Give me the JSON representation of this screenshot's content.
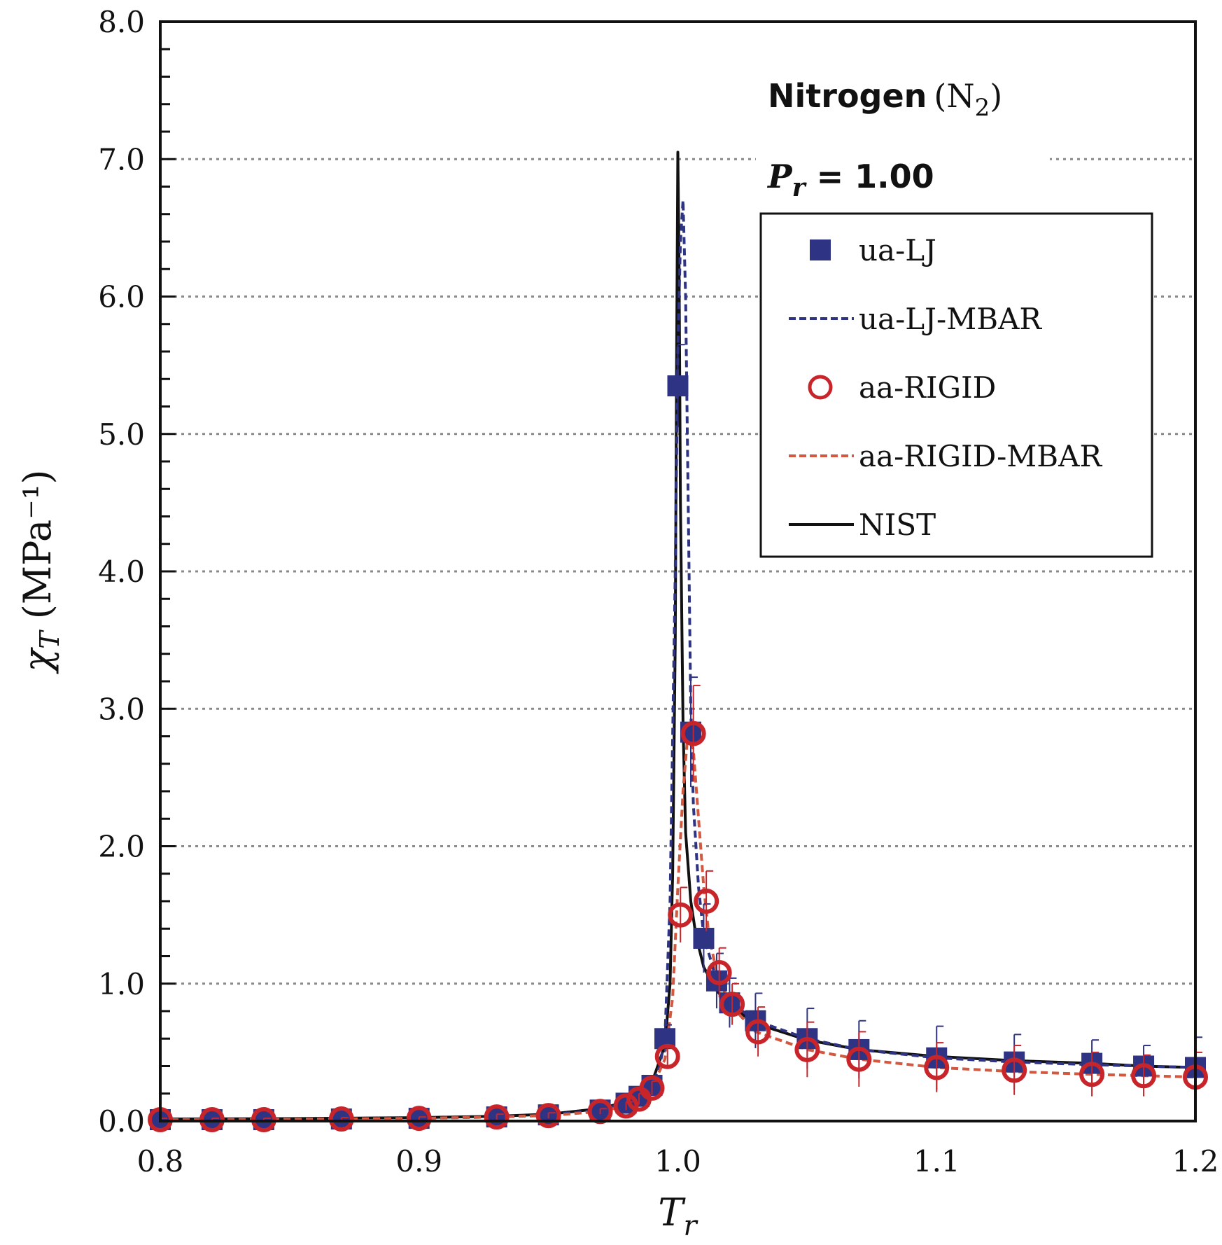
{
  "chart_data": {
    "type": "scatter",
    "title": "",
    "xlabel": "T",
    "xlabel_sub": "r",
    "ylabel": "χ",
    "ylabel_sub": "T",
    "ylabel_unit": " (MPa⁻¹)",
    "xlim": [
      0.8,
      1.2
    ],
    "ylim": [
      0.0,
      8.0
    ],
    "x_ticks": [
      0.8,
      0.9,
      1.0,
      1.1,
      1.2
    ],
    "x_tick_labels": [
      "0.8",
      "0.9",
      "1.0",
      "1.1",
      "1.2"
    ],
    "y_ticks": [
      0,
      1,
      2,
      3,
      4,
      5,
      6,
      7,
      8
    ],
    "y_tick_labels": [
      "0.0",
      "1.0",
      "2.0",
      "3.0",
      "4.0",
      "5.0",
      "6.0",
      "7.0",
      "8.0"
    ],
    "grid": "horizontal dotted",
    "legend_position": "top-right",
    "annotations": {
      "substance_name": "Nitrogen",
      "substance_formula": "(N",
      "substance_formula_sub": "2",
      "substance_formula_end": ")",
      "pressure_symbol": "P",
      "pressure_sub": "r",
      "pressure_value": " = 1.00"
    },
    "series": [
      {
        "name": "ua-LJ",
        "kind": "markers",
        "marker": "square",
        "color": "#2e3383",
        "x": [
          0.8,
          0.82,
          0.84,
          0.87,
          0.9,
          0.93,
          0.95,
          0.97,
          0.98,
          0.985,
          0.99,
          0.995,
          1.0,
          1.005,
          1.01,
          1.015,
          1.02,
          1.03,
          1.05,
          1.07,
          1.1,
          1.13,
          1.16,
          1.18,
          1.2
        ],
        "y": [
          0.01,
          0.01,
          0.01,
          0.015,
          0.02,
          0.03,
          0.045,
          0.08,
          0.13,
          0.18,
          0.26,
          0.6,
          5.35,
          2.83,
          1.33,
          1.02,
          0.86,
          0.73,
          0.6,
          0.52,
          0.46,
          0.43,
          0.42,
          0.4,
          0.39
        ],
        "err": [
          0.01,
          0.01,
          0.01,
          0.01,
          0.01,
          0.02,
          0.02,
          0.02,
          0.03,
          0.04,
          0.05,
          0.1,
          0.3,
          0.4,
          0.25,
          0.2,
          0.18,
          0.2,
          0.22,
          0.21,
          0.23,
          0.2,
          0.17,
          0.15,
          0.22
        ]
      },
      {
        "name": "ua-LJ-MBAR",
        "kind": "dashed-line",
        "color": "#2e3383",
        "x": [
          0.8,
          0.85,
          0.9,
          0.93,
          0.95,
          0.97,
          0.98,
          0.985,
          0.99,
          0.993,
          0.995,
          0.997,
          0.999,
          1.0,
          1.001,
          1.002,
          1.003,
          1.004,
          1.005,
          1.006,
          1.008,
          1.01,
          1.015,
          1.02,
          1.03,
          1.05,
          1.07,
          1.1,
          1.13,
          1.16,
          1.18,
          1.2
        ],
        "y": [
          0.01,
          0.012,
          0.02,
          0.03,
          0.045,
          0.08,
          0.13,
          0.18,
          0.26,
          0.4,
          0.6,
          1.6,
          4.0,
          5.6,
          6.4,
          6.7,
          6.0,
          4.5,
          3.0,
          2.3,
          1.7,
          1.35,
          1.02,
          0.87,
          0.73,
          0.6,
          0.52,
          0.46,
          0.43,
          0.41,
          0.4,
          0.39
        ]
      },
      {
        "name": "aa-RIGID",
        "kind": "markers",
        "marker": "circle",
        "color": "#c8252b",
        "x": [
          0.8,
          0.82,
          0.84,
          0.87,
          0.9,
          0.93,
          0.95,
          0.97,
          0.98,
          0.985,
          0.99,
          0.996,
          1.001,
          1.006,
          1.011,
          1.016,
          1.021,
          1.031,
          1.05,
          1.07,
          1.1,
          1.13,
          1.16,
          1.18,
          1.2
        ],
        "y": [
          0.01,
          0.01,
          0.01,
          0.015,
          0.02,
          0.03,
          0.04,
          0.07,
          0.11,
          0.16,
          0.24,
          0.47,
          1.5,
          2.82,
          1.6,
          1.08,
          0.85,
          0.65,
          0.52,
          0.45,
          0.39,
          0.37,
          0.34,
          0.33,
          0.32
        ],
        "err": [
          0.01,
          0.01,
          0.01,
          0.01,
          0.01,
          0.02,
          0.02,
          0.02,
          0.03,
          0.04,
          0.05,
          0.08,
          0.2,
          0.35,
          0.22,
          0.18,
          0.15,
          0.18,
          0.2,
          0.2,
          0.18,
          0.18,
          0.16,
          0.15,
          0.18
        ]
      },
      {
        "name": "aa-RIGID-MBAR",
        "kind": "dashed-line",
        "color": "#d2593f",
        "x": [
          0.8,
          0.85,
          0.9,
          0.93,
          0.95,
          0.97,
          0.98,
          0.99,
          0.995,
          0.998,
          1.0,
          1.002,
          1.004,
          1.006,
          1.008,
          1.01,
          1.012,
          1.015,
          1.02,
          1.03,
          1.05,
          1.07,
          1.1,
          1.13,
          1.16,
          1.18,
          1.2
        ],
        "y": [
          0.01,
          0.012,
          0.02,
          0.03,
          0.04,
          0.07,
          0.11,
          0.24,
          0.45,
          0.9,
          1.7,
          2.4,
          2.85,
          2.7,
          2.2,
          1.7,
          1.35,
          1.08,
          0.85,
          0.65,
          0.52,
          0.45,
          0.39,
          0.36,
          0.34,
          0.33,
          0.32
        ]
      },
      {
        "name": "NIST",
        "kind": "solid-line",
        "color": "#111111",
        "x": [
          0.8,
          0.85,
          0.9,
          0.93,
          0.95,
          0.97,
          0.98,
          0.99,
          0.995,
          0.997,
          0.998,
          0.999,
          0.9995,
          1.0,
          1.0005,
          1.001,
          1.002,
          1.003,
          1.005,
          1.007,
          1.01,
          1.015,
          1.02,
          1.03,
          1.05,
          1.07,
          1.1,
          1.13,
          1.16,
          1.18,
          1.2
        ],
        "y": [
          0.015,
          0.018,
          0.025,
          0.035,
          0.05,
          0.09,
          0.14,
          0.28,
          0.55,
          1.0,
          1.8,
          3.5,
          5.5,
          7.05,
          6.2,
          4.5,
          2.9,
          2.1,
          1.6,
          1.35,
          1.12,
          0.95,
          0.84,
          0.71,
          0.59,
          0.52,
          0.47,
          0.44,
          0.42,
          0.4,
          0.39
        ]
      }
    ]
  }
}
